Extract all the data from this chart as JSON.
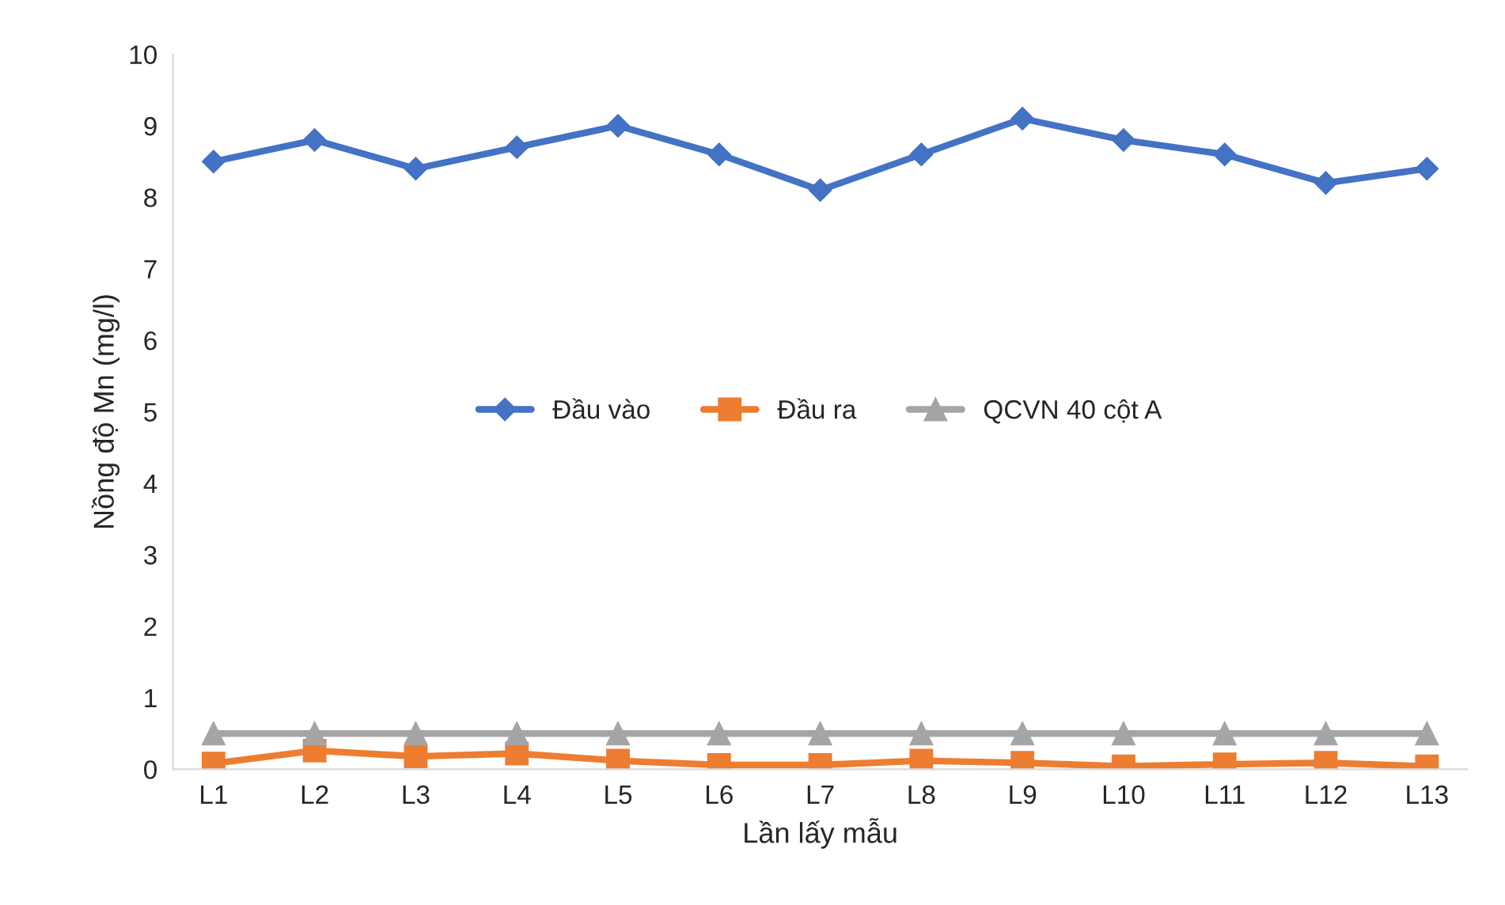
{
  "chart_data": {
    "type": "line",
    "xlabel": "Lần lấy mẫu",
    "ylabel": "Nồng độ Mn (mg/l)",
    "categories": [
      "L1",
      "L2",
      "L3",
      "L4",
      "L5",
      "L6",
      "L7",
      "L8",
      "L9",
      "L10",
      "L11",
      "L12",
      "L13"
    ],
    "series": [
      {
        "name": "Đầu vào",
        "color": "#4472c4",
        "marker": "diamond",
        "values": [
          8.5,
          8.8,
          8.4,
          8.7,
          9.0,
          8.6,
          8.1,
          8.6,
          9.1,
          8.8,
          8.6,
          8.2,
          8.4
        ]
      },
      {
        "name": "Đầu ra",
        "color": "#ed7d31",
        "marker": "square",
        "values": [
          0.08,
          0.26,
          0.18,
          0.22,
          0.12,
          0.06,
          0.06,
          0.12,
          0.09,
          0.04,
          0.07,
          0.09,
          0.04
        ]
      },
      {
        "name": "QCVN 40 cột A",
        "color": "#a5a5a5",
        "marker": "triangle",
        "values": [
          0.5,
          0.5,
          0.5,
          0.5,
          0.5,
          0.5,
          0.5,
          0.5,
          0.5,
          0.5,
          0.5,
          0.5,
          0.5
        ]
      }
    ],
    "ylim": [
      0,
      10
    ],
    "yticks": [
      0,
      1,
      2,
      3,
      4,
      5,
      6,
      7,
      8,
      9,
      10
    ],
    "grid": false,
    "legend": "center"
  }
}
